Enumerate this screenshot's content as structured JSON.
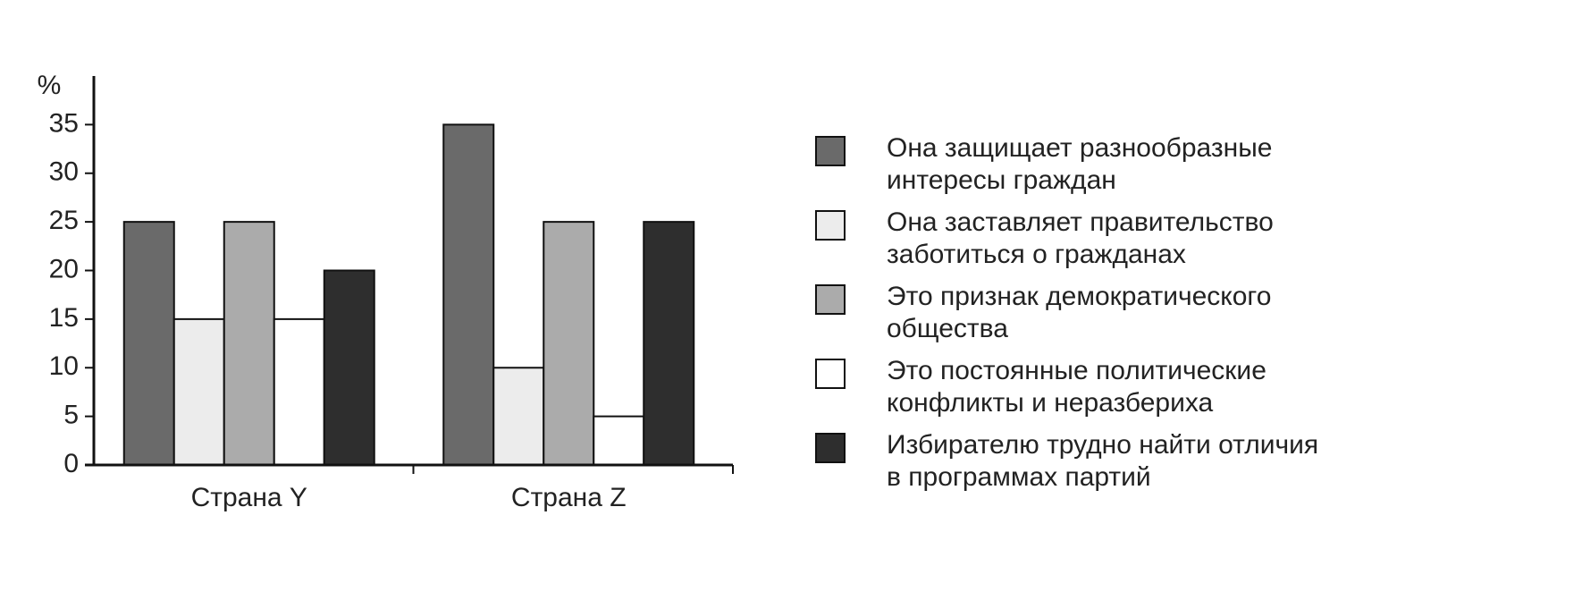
{
  "chart_data": {
    "type": "bar",
    "y_label": "%",
    "categories": [
      "Страна Y",
      "Страна Z"
    ],
    "series": [
      {
        "name": "Она защищает разнообразные\nинтересы граждан",
        "color": "#6a6a6a",
        "values": [
          25,
          35
        ]
      },
      {
        "name": "Она заставляет правительство\nзаботиться о гражданах",
        "color": "#ececec",
        "values": [
          15,
          10
        ]
      },
      {
        "name": "Это признак демократического\nобщества",
        "color": "#ababab",
        "values": [
          25,
          25
        ]
      },
      {
        "name": "Это постоянные политические\nконфликты и неразбериха",
        "color": "#ffffff",
        "values": [
          15,
          5
        ]
      },
      {
        "name": "Избирателю трудно найти отличия\nв программах партий",
        "color": "#2e2e2e",
        "values": [
          20,
          25
        ]
      }
    ],
    "ylim": [
      0,
      40
    ],
    "yticks": [
      0,
      5,
      10,
      15,
      20,
      25,
      30,
      35
    ],
    "grid": false
  }
}
